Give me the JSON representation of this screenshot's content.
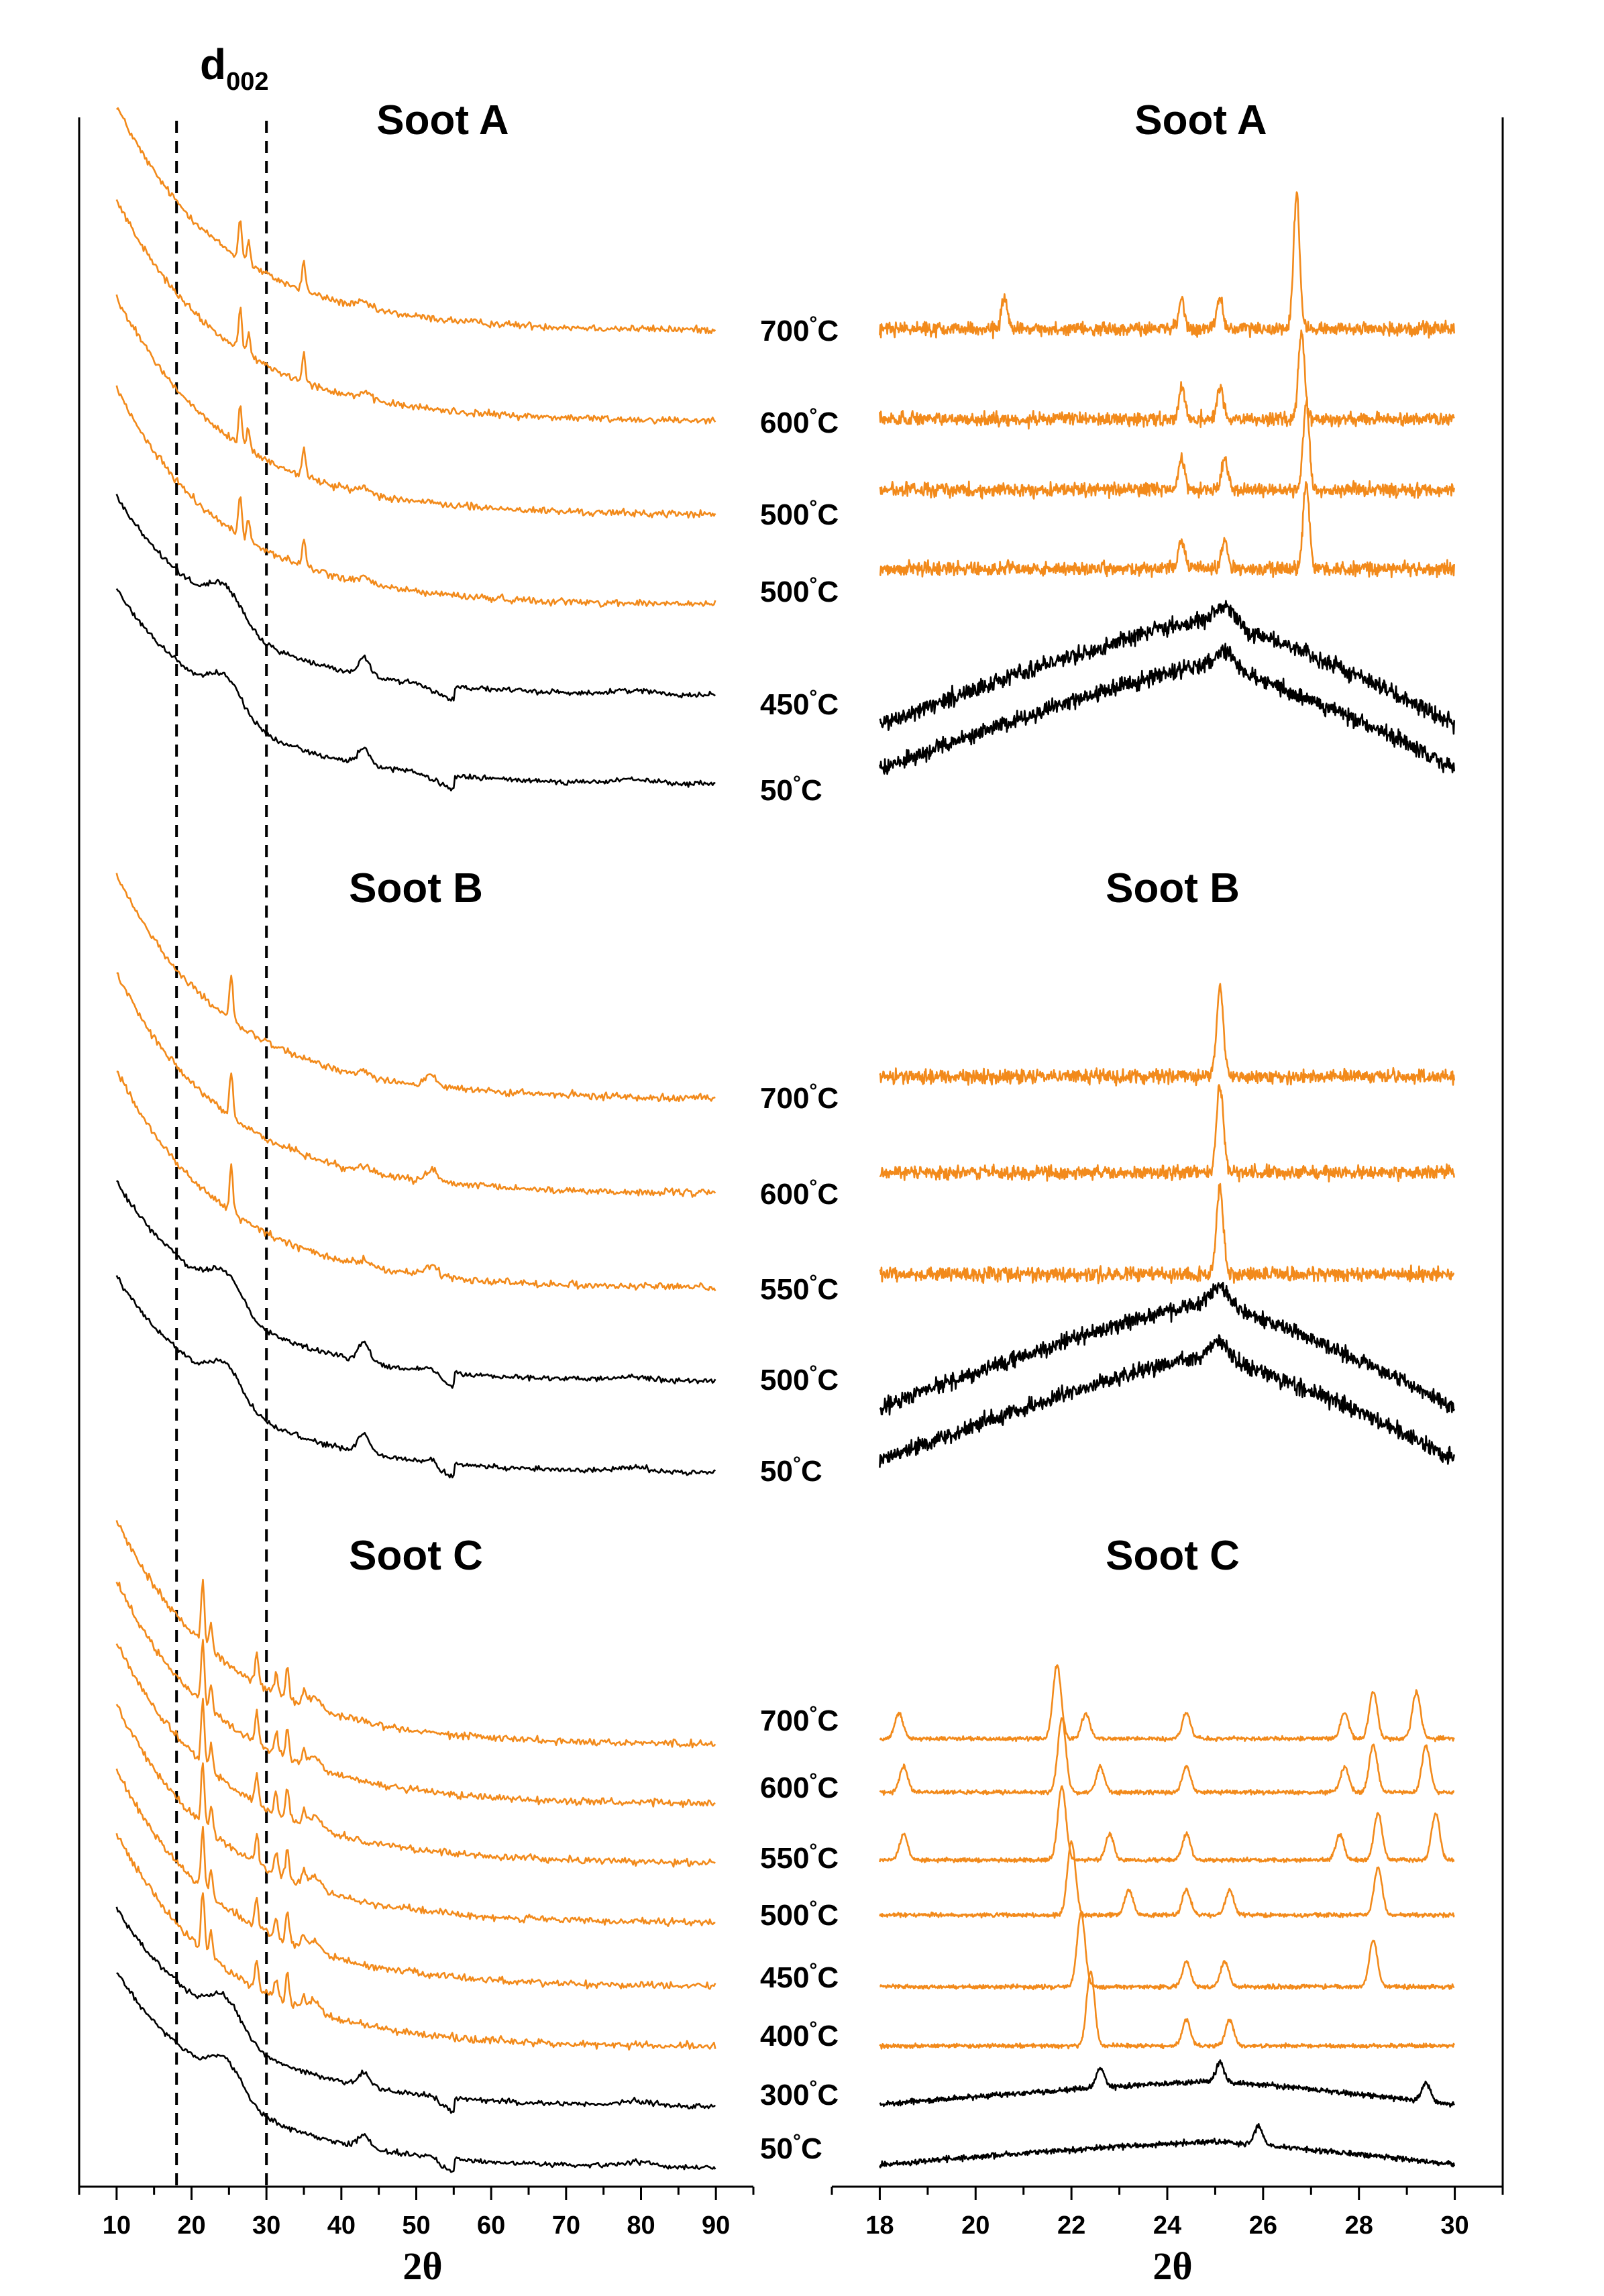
{
  "colors": {
    "heated": "#f28a1b",
    "low": "#000000"
  },
  "annotation": {
    "main": "d",
    "sub": "002",
    "x": [
      18,
      30
    ]
  },
  "x_axis_label": "2θ",
  "chart_data": [
    {
      "type": "line",
      "panel": "left",
      "xlim": [
        5,
        95
      ],
      "xticks": [
        10,
        20,
        30,
        40,
        50,
        60,
        70,
        80,
        90
      ],
      "xlabel": "2θ",
      "groups": [
        {
          "title": "Soot A",
          "traces": [
            "700°C",
            "600°C",
            "500°C",
            "500°C",
            "450°C",
            "50°C"
          ]
        },
        {
          "title": "Soot B",
          "traces": [
            "700°C",
            "600°C",
            "550°C",
            "500°C",
            "50°C"
          ]
        },
        {
          "title": "Soot C",
          "traces": [
            "700°C",
            "600°C",
            "550°C",
            "500°C",
            "450°C",
            "400°C",
            "300°C",
            "50°C"
          ]
        }
      ]
    },
    {
      "type": "line",
      "panel": "right",
      "xlim": [
        17,
        31
      ],
      "xticks": [
        18,
        20,
        22,
        24,
        26,
        28,
        30
      ],
      "xlabel": "2θ",
      "groups": [
        {
          "title": "Soot A",
          "traces": [
            {
              "label": "700°C",
              "color": "heated",
              "peaks": [
                20.6,
                24.3,
                25.1,
                26.7
              ]
            },
            {
              "label": "600°C",
              "color": "heated",
              "peaks": [
                24.3,
                25.1,
                26.8
              ]
            },
            {
              "label": "500°C",
              "color": "heated",
              "peaks": [
                24.3,
                25.2,
                26.9
              ]
            },
            {
              "label": "500°C",
              "color": "heated",
              "peaks": [
                24.3,
                25.2,
                26.9
              ]
            },
            {
              "label": "450°C",
              "color": "low",
              "peaks": [
                25.2
              ]
            },
            {
              "label": "50°C",
              "color": "low",
              "peaks": [
                25.2
              ]
            }
          ]
        },
        {
          "title": "Soot B",
          "traces": [
            {
              "label": "700°C",
              "color": "heated",
              "peaks": [
                25.1
              ]
            },
            {
              "label": "600°C",
              "color": "heated",
              "peaks": [
                25.1
              ]
            },
            {
              "label": "550°C",
              "color": "heated",
              "peaks": [
                25.1
              ]
            },
            {
              "label": "500°C",
              "color": "low",
              "peaks": [
                25.1
              ]
            },
            {
              "label": "50°C",
              "color": "low",
              "peaks": [
                25.1
              ]
            }
          ]
        },
        {
          "title": "Soot C",
          "traces": [
            {
              "label": "700°C",
              "color": "heated",
              "peaks": [
                18.4,
                21.7,
                22.3,
                24.4,
                27.7,
                28.3,
                29.2
              ]
            },
            {
              "label": "600°C",
              "color": "heated",
              "peaks": [
                18.5,
                21.8,
                22.6,
                24.4,
                27.7,
                28.3,
                29.4
              ]
            },
            {
              "label": "550°C",
              "color": "heated",
              "peaks": [
                18.5,
                21.8,
                22.8,
                24.4,
                27.6,
                28.4,
                29.6
              ]
            },
            {
              "label": "500°C",
              "color": "heated",
              "peaks": [
                22.0,
                23.2,
                24.4,
                25.3,
                28.4
              ]
            },
            {
              "label": "450°C",
              "color": "heated",
              "peaks": [
                22.2,
                24.4,
                25.2,
                28.3
              ]
            },
            {
              "label": "400°C",
              "color": "heated",
              "peaks": [
                22.4,
                24.4,
                25.3
              ]
            },
            {
              "label": "300°C",
              "color": "low",
              "peaks": [
                22.6,
                25.1,
                29.4
              ]
            },
            {
              "label": "50°C",
              "color": "low",
              "peaks": [
                25.9
              ]
            }
          ]
        }
      ]
    }
  ]
}
